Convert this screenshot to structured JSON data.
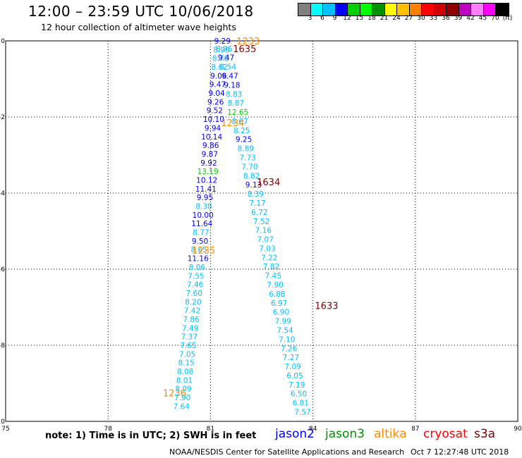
{
  "header": {
    "title": "12:00 – 23:59 UTC 10/06/2018",
    "subtitle": "12 hour collection of altimeter wave heights"
  },
  "colorbar": {
    "colors": [
      "#808080",
      "#00ffff",
      "#00c0ff",
      "#0000ff",
      "#00d000",
      "#00ff00",
      "#009000",
      "#ffff00",
      "#ffc000",
      "#ff8000",
      "#ff0000",
      "#d00000",
      "#900000",
      "#c000c0",
      "#ff80ff",
      "#ff00ff",
      "#000000"
    ],
    "labels": [
      "3",
      "6",
      "9",
      "12",
      "15",
      "18",
      "21",
      "24",
      "27",
      "30",
      "33",
      "36",
      "39",
      "42",
      "45",
      "70",
      "(ft)"
    ]
  },
  "chart_data": {
    "type": "scatter",
    "x_ticks": [
      "75",
      "78",
      "81",
      "84",
      "87",
      "90"
    ],
    "y_ticks": [
      "0",
      "-2",
      "-4",
      "-6",
      "-8",
      "-10"
    ],
    "xlim": [
      75,
      90
    ],
    "ylim": [
      -10,
      0
    ],
    "grid": true,
    "tracks": [
      {
        "x0": 81.35,
        "y0": 0.0,
        "x1": 80.15,
        "y1": -9.6,
        "labels": [
          "9.29",
          "8.99",
          "8.70",
          "8.62",
          "9.06",
          "9.47",
          "9.04",
          "9.26",
          "9.52",
          "10.10",
          "9.94",
          "10.14",
          "9.86",
          "9.87",
          "9.92",
          "13.19",
          "10.12",
          "11.41",
          "9.95",
          "8.38",
          "10.00",
          "11.64",
          "8.77",
          "9.50",
          "8.65",
          "11.16",
          "8.06",
          "7.55",
          "7.46",
          "7.60",
          "8.20",
          "7.42",
          "7.86",
          "7.49",
          "7.37",
          "7.65",
          "7.05",
          "8.15",
          "8.08",
          "8.01",
          "8.09",
          "7.90",
          "7.64"
        ]
      },
      {
        "x0": 81.4,
        "y0": -0.2,
        "x1": 83.7,
        "y1": -9.75,
        "labels": [
          "8.96",
          "9.47",
          "8.54",
          "9.47",
          "9.18",
          "8.83",
          "8.87",
          "12.65",
          "8.67",
          "8.25",
          "9.25",
          "8.89",
          "7.73",
          "7.70",
          "8.82",
          "9.13",
          "8.39",
          "7.17",
          "6.72",
          "7.52",
          "7.16",
          "7.07",
          "7.03",
          "7.22",
          "7.82",
          "7.45",
          "7.90",
          "6.88",
          "6.97",
          "6.90",
          "7.99",
          "7.54",
          "7.10",
          "7.26",
          "7.27",
          "7.09",
          "6.05",
          "7.19",
          "6.50",
          "6.81",
          "7.57"
        ]
      }
    ],
    "time_labels": [
      {
        "text": "1233",
        "x": 82.1,
        "y": 0.0,
        "color": "#ff8c00"
      },
      {
        "text": "1635",
        "x": 82.0,
        "y": -0.2,
        "color": "#800000"
      },
      {
        "text": "1234",
        "x": 81.65,
        "y": -2.15,
        "color": "#ff8c00"
      },
      {
        "text": "1634",
        "x": 82.7,
        "y": -3.7,
        "color": "#800000"
      },
      {
        "text": "1235",
        "x": 80.8,
        "y": -5.5,
        "color": "#ff8c00"
      },
      {
        "text": "1633",
        "x": 84.4,
        "y": -6.95,
        "color": "#800000"
      },
      {
        "text": "1236",
        "x": 79.95,
        "y": -9.25,
        "color": "#ff8c00"
      }
    ]
  },
  "footer": {
    "note": "note:  1) Time is in UTC;  2) SWH is in feet",
    "legend": [
      {
        "name": "jason2",
        "color": "#0000ff"
      },
      {
        "name": "jason3",
        "color": "#009000"
      },
      {
        "name": "altika",
        "color": "#ff8c00"
      },
      {
        "name": "cryosat",
        "color": "#ff0000"
      },
      {
        "name": "s3a",
        "color": "#800000"
      }
    ],
    "credit": "NOAA/NESDIS Center for Satellite Applications and Research",
    "timestamp": "Oct  7 12:27:48 UTC 2018"
  }
}
